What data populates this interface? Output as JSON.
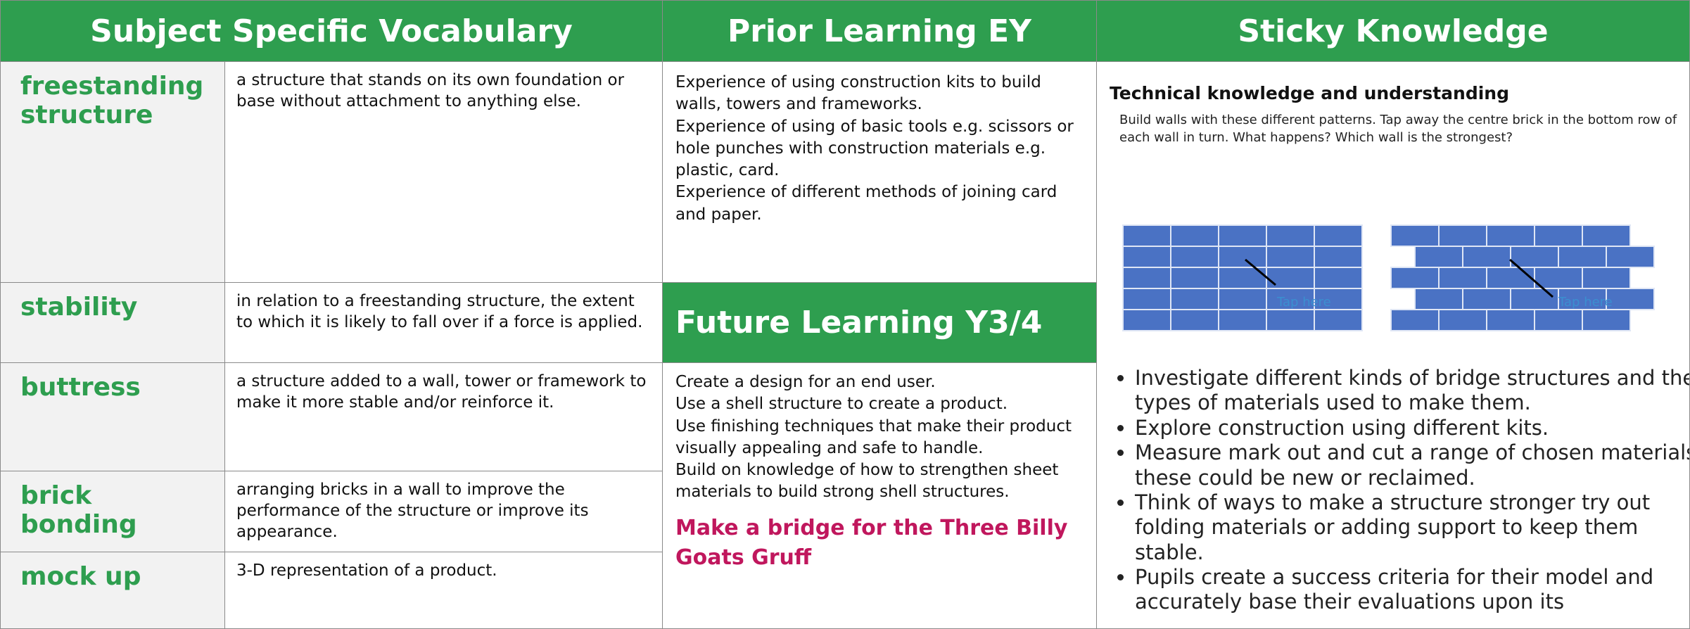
{
  "headers": {
    "vocabulary": "Subject Specific Vocabulary",
    "prior": "Prior Learning EY",
    "sticky": "Sticky Knowledge"
  },
  "vocabulary": [
    {
      "term": "freestanding structure",
      "definition": "a structure that stands on its own foundation or base without attachment to anything else."
    },
    {
      "term": "stability",
      "definition": "in relation to a freestanding structure, the extent to which it is likely to fall over if a force is applied."
    },
    {
      "term": "buttress",
      "definition": "a structure added to a wall, tower or framework to make it more stable and/or reinforce it."
    },
    {
      "term": "brick bonding",
      "definition": "arranging bricks in a wall to improve the performance of the structure or improve its appearance."
    },
    {
      "term": "mock up",
      "definition": "3-D representation of a product."
    }
  ],
  "prior_learning": [
    "Experience of using construction kits to build walls, towers and frameworks.",
    "Experience of using of basic tools e.g. scissors or hole punches with construction materials e.g. plastic, card.",
    "Experience of different methods of joining card and paper."
  ],
  "future_learning": {
    "title": "Future Learning Y3/4",
    "items": [
      "Create a design for an end user.",
      "Use a shell structure to create a product.",
      "Use finishing techniques that make their product visually appealing and safe to handle.",
      "Build on knowledge of how to strengthen sheet materials to build strong shell structures."
    ],
    "task": "Make a bridge for the Three Billy Goats Gruff"
  },
  "sticky_knowledge": {
    "image_title": "Technical knowledge and understanding",
    "image_caption": "Build walls with these different patterns. Tap away the centre brick in the bottom row of each wall in turn. What happens? Which wall is the strongest?",
    "tap_labels": [
      "Tap here",
      "Tap here"
    ],
    "bullets": [
      "Investigate different kinds of bridge structures and the types of materials used to make them.",
      "Explore construction using different kits.",
      "Measure mark out and cut a range of chosen materials, these could be new or reclaimed.",
      "Think of ways to make a structure stronger try out folding materials or adding support to keep them stable.",
      "Pupils create a success criteria for their model and accurately base their evaluations upon its"
    ]
  }
}
